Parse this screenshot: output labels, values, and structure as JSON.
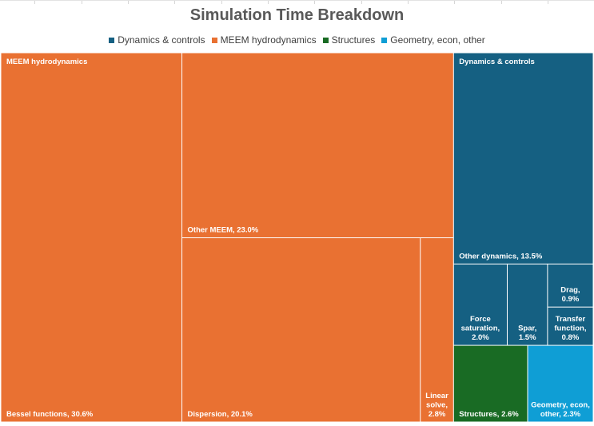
{
  "chart_data": {
    "type": "treemap",
    "title": "Simulation Time Breakdown",
    "legend_position": "top",
    "groups": [
      {
        "name": "MEEM hydrodynamics",
        "color": "#E97132",
        "items": [
          {
            "name": "Bessel functions",
            "value": 30.6,
            "label": "Bessel functions, 30.6%"
          },
          {
            "name": "Other MEEM",
            "value": 23.0,
            "label": "Other MEEM, 23.0%"
          },
          {
            "name": "Dispersion",
            "value": 20.1,
            "label": "Dispersion, 20.1%"
          },
          {
            "name": "Linear solve",
            "value": 2.8,
            "label": "Linear solve, 2.8%",
            "label_lines": [
              "Linear",
              "solve,",
              "2.8%"
            ]
          }
        ]
      },
      {
        "name": "Dynamics & controls",
        "color": "#156082",
        "items": [
          {
            "name": "Other dynamics",
            "value": 13.5,
            "label": "Other dynamics, 13.5%"
          },
          {
            "name": "Force saturation",
            "value": 2.0,
            "label": "Force saturation, 2.0%",
            "label_lines": [
              "Force",
              "saturation,",
              "2.0%"
            ]
          },
          {
            "name": "Spar",
            "value": 1.5,
            "label": "Spar, 1.5%",
            "label_lines": [
              "Spar,",
              "1.5%"
            ]
          },
          {
            "name": "Drag",
            "value": 0.9,
            "label": "Drag, 0.9%",
            "label_lines": [
              "Drag,",
              "0.9%"
            ]
          },
          {
            "name": "Transfer function",
            "value": 0.8,
            "label": "Transfer function, 0.8%",
            "label_lines": [
              "Transfer",
              "function,",
              "0.8%"
            ]
          }
        ]
      },
      {
        "name": "Structures",
        "color": "#196B24",
        "items": [
          {
            "name": "Structures",
            "value": 2.6,
            "label": "Structures, 2.6%"
          }
        ]
      },
      {
        "name": "Geometry, econ, other",
        "color": "#0F9ED5",
        "items": [
          {
            "name": "Geometry, econ, other",
            "value": 2.3,
            "label": "Geometry, econ, other, 2.3%",
            "label_lines": [
              "Geometry, econ,",
              "other, 2.3%"
            ]
          }
        ]
      }
    ],
    "legend": [
      "Dynamics & controls",
      "MEEM hydrodynamics",
      "Structures",
      "Geometry, econ, other"
    ]
  }
}
